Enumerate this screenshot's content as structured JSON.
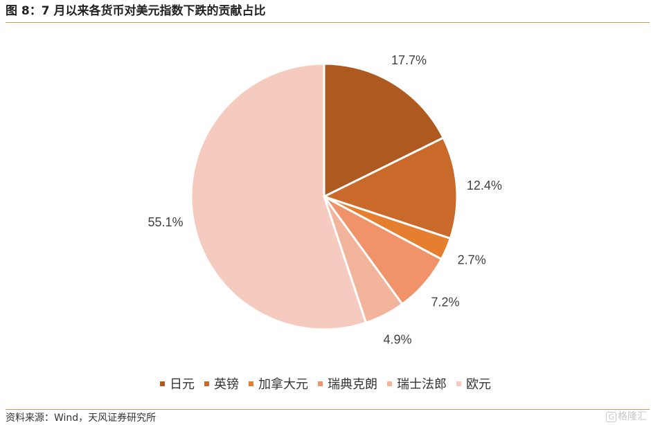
{
  "title": "图 8：7 月以来各货币对美元指数下跌的贡献占比",
  "source": "资料来源：Wind，天风证券研究所",
  "watermark": {
    "icon_label": "G",
    "text": "格隆汇"
  },
  "colors": {
    "rule": "#c79a54",
    "slice_border": "#ffffff"
  },
  "chart_data": {
    "type": "pie",
    "title": "",
    "start_angle": "12 o'clock",
    "direction": "clockwise",
    "legend_position": "bottom",
    "slices": [
      {
        "name": "日元",
        "value": 17.7,
        "label": "17.7%",
        "color": "#ae5920"
      },
      {
        "name": "英镑",
        "value": 12.4,
        "label": "12.4%",
        "color": "#c96a2b"
      },
      {
        "name": "加拿大元",
        "value": 2.7,
        "label": "2.7%",
        "color": "#e67e30"
      },
      {
        "name": "瑞典克朗",
        "value": 7.2,
        "label": "7.2%",
        "color": "#f0936a"
      },
      {
        "name": "瑞士法郎",
        "value": 4.9,
        "label": "4.9%",
        "color": "#f3b49c"
      },
      {
        "name": "欧元",
        "value": 55.1,
        "label": "55.1%",
        "color": "#f6cbbf"
      }
    ]
  }
}
